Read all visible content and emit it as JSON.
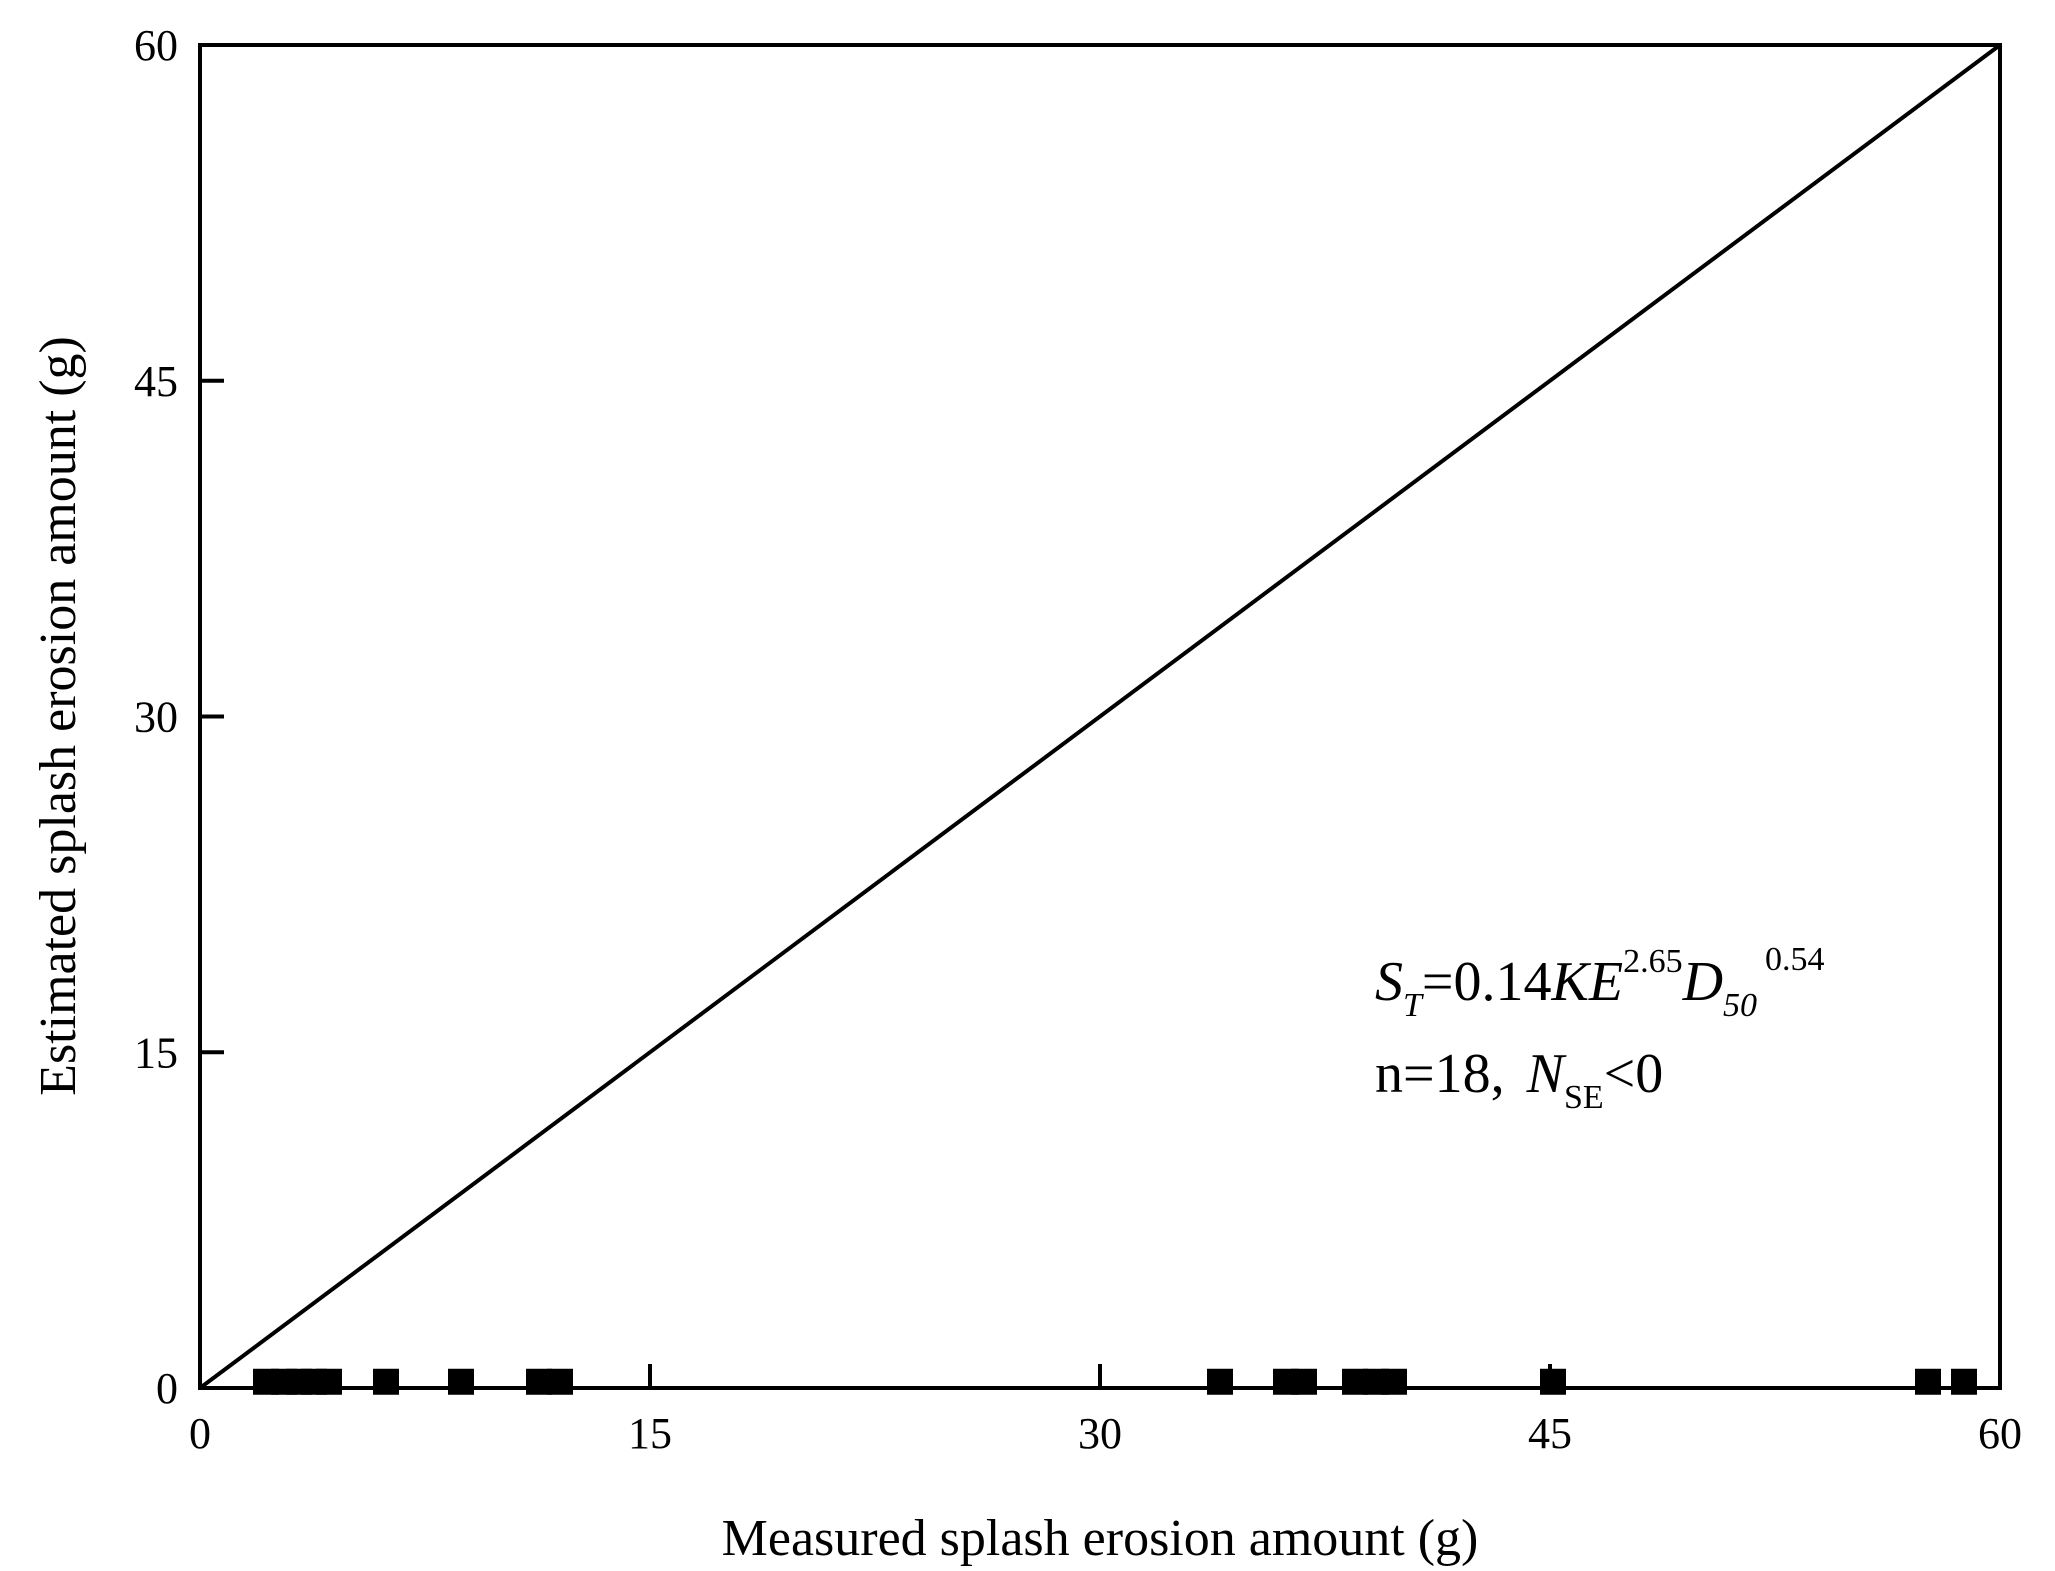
{
  "chart_data": {
    "type": "scatter",
    "title": "",
    "xlabel": "Measured splash erosion amount (g)",
    "ylabel": "Estimated splash erosion amount (g)",
    "xlim": [
      0,
      60
    ],
    "ylim": [
      0,
      60
    ],
    "x_ticks": [
      "0",
      "15",
      "30",
      "45",
      "60"
    ],
    "y_ticks": [
      "0",
      "15",
      "30",
      "45",
      "60"
    ],
    "grid": false,
    "legend": "none",
    "reference_line": {
      "type": "1:1",
      "from": [
        0,
        0
      ],
      "to": [
        60,
        60
      ]
    },
    "marker": "square",
    "marker_color": "#000000",
    "series": [
      {
        "x": [
          2.2,
          2.8,
          3.3,
          3.8,
          4.3,
          6.2,
          8.7,
          11.3,
          12.0,
          34.0,
          36.2,
          36.8,
          38.5,
          39.2,
          39.8,
          45.1,
          57.6,
          58.8
        ],
        "y": [
          0.1,
          0.1,
          0.1,
          0.1,
          0.1,
          0.1,
          0.1,
          0.1,
          0.1,
          0.1,
          0.1,
          0.1,
          0.1,
          0.1,
          0.1,
          0.1,
          0.1,
          0.1
        ]
      }
    ],
    "annotation": {
      "eq_S": "S",
      "eq_S_sub": "T",
      "eq_mid": "=0.14",
      "eq_KE": "KE",
      "eq_KE_sup": "2.65",
      "eq_D": "D",
      "eq_D_sub": "50",
      "eq_D_sup": "0.54",
      "stat_n": "n=18,",
      "stat_N": "N",
      "stat_N_sub": "SE",
      "stat_rel": "<0"
    }
  }
}
